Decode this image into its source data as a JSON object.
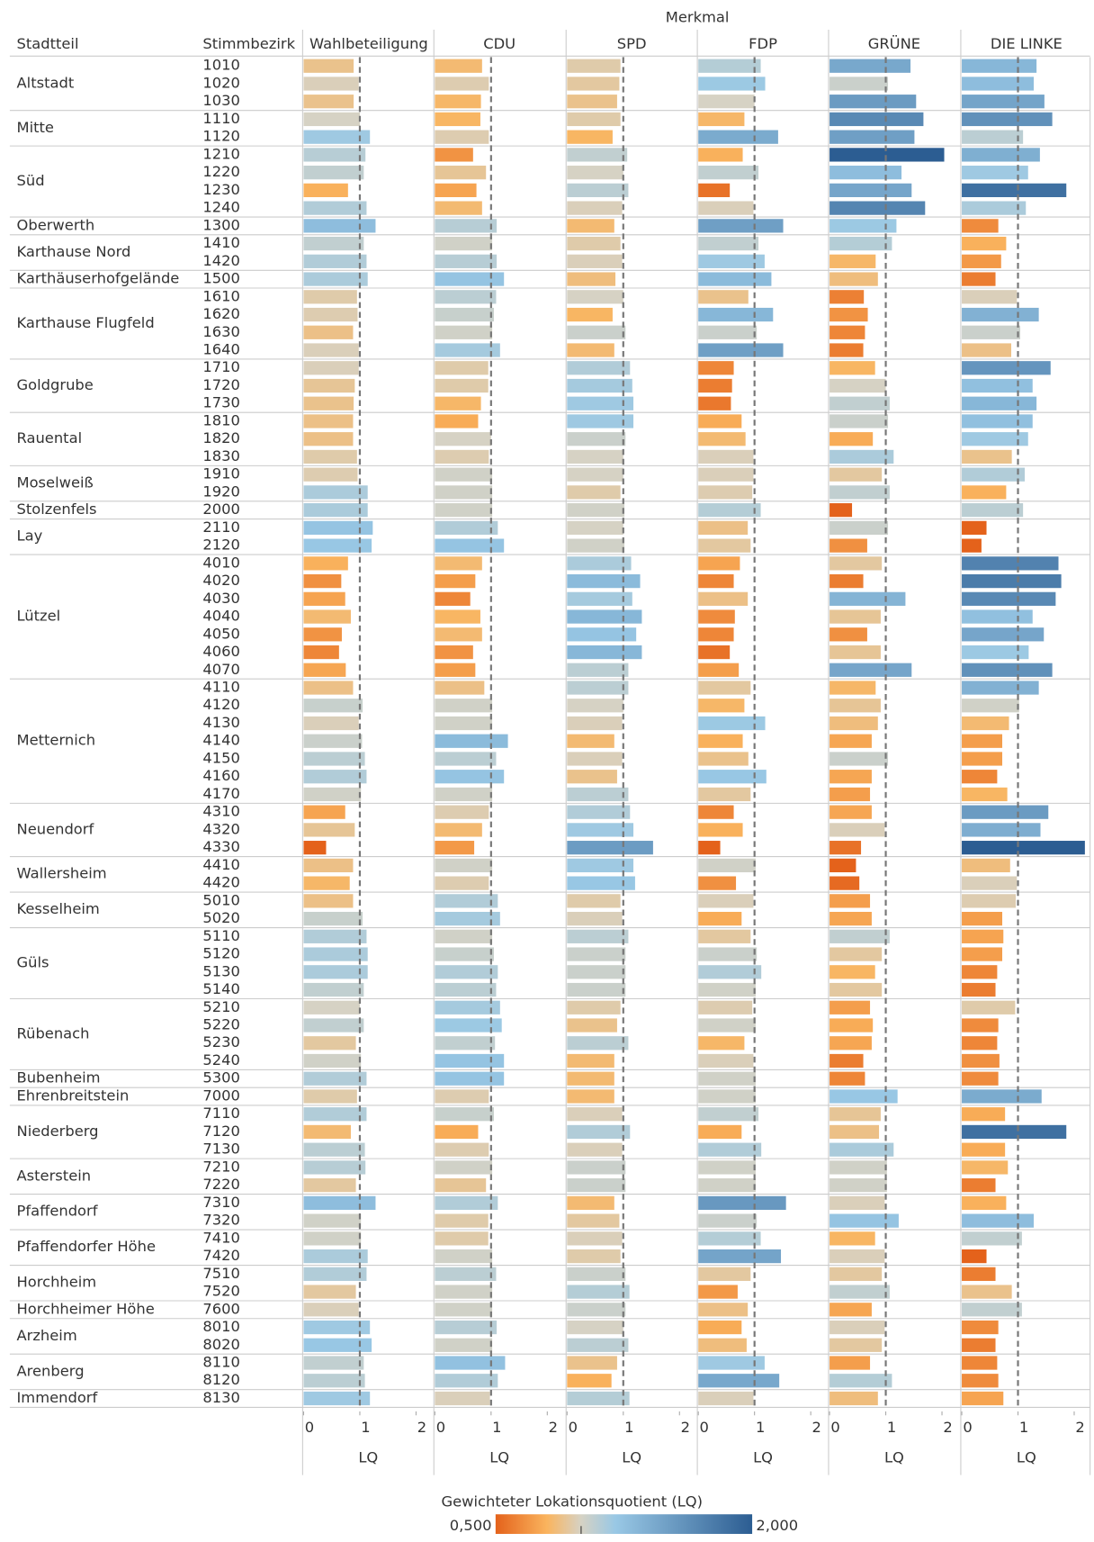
{
  "chart_data": {
    "type": "bar",
    "orientation": "horizontal",
    "facet_title": "Merkmal",
    "column_headers": [
      "Stadtteil",
      "Stimmbezirk"
    ],
    "groups": [
      {
        "name": "Altstadt",
        "bezirke": [
          "1010",
          "1020",
          "1030"
        ]
      },
      {
        "name": "Mitte",
        "bezirke": [
          "1110",
          "1120"
        ]
      },
      {
        "name": "Süd",
        "bezirke": [
          "1210",
          "1220",
          "1230",
          "1240"
        ]
      },
      {
        "name": "Oberwerth",
        "bezirke": [
          "1300"
        ]
      },
      {
        "name": "Karthause Nord",
        "bezirke": [
          "1410",
          "1420"
        ]
      },
      {
        "name": "Karthäuserhofgelände",
        "bezirke": [
          "1500"
        ]
      },
      {
        "name": "Karthause Flugfeld",
        "bezirke": [
          "1610",
          "1620",
          "1630",
          "1640"
        ]
      },
      {
        "name": "Goldgrube",
        "bezirke": [
          "1710",
          "1720",
          "1730"
        ]
      },
      {
        "name": "Rauental",
        "bezirke": [
          "1810",
          "1820",
          "1830"
        ]
      },
      {
        "name": "Moselweiß",
        "bezirke": [
          "1910",
          "1920"
        ]
      },
      {
        "name": "Stolzenfels",
        "bezirke": [
          "2000"
        ]
      },
      {
        "name": "Lay",
        "bezirke": [
          "2110",
          "2120"
        ]
      },
      {
        "name": "Lützel",
        "bezirke": [
          "4010",
          "4020",
          "4030",
          "4040",
          "4050",
          "4060",
          "4070"
        ]
      },
      {
        "name": "Metternich",
        "bezirke": [
          "4110",
          "4120",
          "4130",
          "4140",
          "4150",
          "4160",
          "4170"
        ]
      },
      {
        "name": "Neuendorf",
        "bezirke": [
          "4310",
          "4320",
          "4330"
        ]
      },
      {
        "name": "Wallersheim",
        "bezirke": [
          "4410",
          "4420"
        ]
      },
      {
        "name": "Kesselheim",
        "bezirke": [
          "5010",
          "5020"
        ]
      },
      {
        "name": "Güls",
        "bezirke": [
          "5110",
          "5120",
          "5130",
          "5140"
        ]
      },
      {
        "name": "Rübenach",
        "bezirke": [
          "5210",
          "5220",
          "5230",
          "5240"
        ]
      },
      {
        "name": "Bubenheim",
        "bezirke": [
          "5300"
        ]
      },
      {
        "name": "Ehrenbreitstein",
        "bezirke": [
          "7000"
        ]
      },
      {
        "name": "Niederberg",
        "bezirke": [
          "7110",
          "7120",
          "7130"
        ]
      },
      {
        "name": "Asterstein",
        "bezirke": [
          "7210",
          "7220"
        ]
      },
      {
        "name": "Pfaffendorf",
        "bezirke": [
          "7310",
          "7320"
        ]
      },
      {
        "name": "Pfaffendorfer Höhe",
        "bezirke": [
          "7410",
          "7420"
        ]
      },
      {
        "name": "Horchheim",
        "bezirke": [
          "7510",
          "7520"
        ]
      },
      {
        "name": "Horchheimer Höhe",
        "bezirke": [
          "7600"
        ]
      },
      {
        "name": "Arzheim",
        "bezirke": [
          "8010",
          "8020"
        ]
      },
      {
        "name": "Arenberg",
        "bezirke": [
          "8110",
          "8120"
        ]
      },
      {
        "name": "Immendorf",
        "bezirke": [
          "8130"
        ]
      }
    ],
    "series": [
      {
        "name": "Wahlbeteiligung",
        "values": [
          0.89,
          0.98,
          0.89,
          1.0,
          1.18,
          1.1,
          1.07,
          0.79,
          1.12,
          1.28,
          1.07,
          1.12,
          1.14,
          0.95,
          0.96,
          0.88,
          0.98,
          0.98,
          0.91,
          0.89,
          0.88,
          0.88,
          0.95,
          0.96,
          1.14,
          1.14,
          1.23,
          1.21,
          0.79,
          0.67,
          0.74,
          0.84,
          0.68,
          0.63,
          0.75,
          0.88,
          1.05,
          0.98,
          1.04,
          1.09,
          1.12,
          1.02,
          0.74,
          0.91,
          0.4,
          0.88,
          0.82,
          0.88,
          1.05,
          1.12,
          1.14,
          1.14,
          1.07,
          1.0,
          1.07,
          0.93,
          1.02,
          1.12,
          0.95,
          1.12,
          0.84,
          1.09,
          1.1,
          0.93,
          1.28,
          1.02,
          1.02,
          1.14,
          1.12,
          0.93,
          0.98,
          1.18,
          1.21,
          1.07,
          1.09,
          1.18
        ]
      },
      {
        "name": "CDU",
        "values": [
          0.84,
          0.96,
          0.82,
          0.81,
          0.96,
          0.68,
          0.91,
          0.74,
          0.84,
          1.1,
          1.02,
          1.1,
          1.23,
          1.09,
          1.05,
          1.02,
          1.16,
          0.95,
          0.95,
          0.82,
          0.77,
          1.0,
          0.96,
          1.02,
          1.02,
          1.02,
          1.12,
          1.23,
          0.84,
          0.72,
          0.63,
          0.81,
          0.84,
          0.68,
          0.72,
          0.88,
          1.02,
          1.02,
          1.3,
          1.09,
          1.23,
          1.02,
          0.96,
          0.84,
          0.7,
          1.02,
          0.96,
          1.12,
          1.16,
          1.02,
          1.05,
          1.12,
          1.09,
          1.16,
          1.19,
          1.07,
          1.23,
          1.23,
          0.96,
          1.05,
          0.77,
          0.96,
          1.02,
          0.91,
          1.12,
          0.95,
          0.95,
          1.02,
          1.09,
          1.02,
          1.02,
          1.1,
          1.02,
          1.25,
          1.12,
          0.98
        ]
      },
      {
        "name": "SPD",
        "values": [
          0.95,
          0.93,
          0.89,
          0.95,
          0.81,
          1.07,
          1.0,
          1.09,
          0.98,
          0.84,
          0.95,
          0.98,
          0.86,
          1.0,
          0.81,
          1.04,
          0.84,
          1.12,
          1.16,
          1.18,
          1.18,
          1.04,
          1.0,
          1.0,
          0.95,
          1.02,
          1.0,
          1.02,
          1.14,
          1.3,
          1.16,
          1.33,
          1.23,
          1.33,
          1.09,
          1.09,
          1.0,
          0.98,
          0.84,
          0.98,
          0.89,
          1.09,
          1.12,
          1.18,
          1.53,
          1.18,
          1.21,
          0.95,
          0.98,
          1.09,
          1.04,
          1.04,
          1.04,
          0.95,
          0.89,
          1.09,
          0.84,
          0.84,
          0.84,
          0.98,
          1.12,
          0.98,
          1.04,
          1.04,
          0.84,
          0.93,
          0.98,
          0.95,
          1.04,
          1.11,
          1.04,
          1.0,
          1.09,
          0.89,
          0.79,
          1.11
        ]
      },
      {
        "name": "FDP",
        "values": [
          1.11,
          1.19,
          1.0,
          0.82,
          1.42,
          0.79,
          1.07,
          0.56,
          0.98,
          1.51,
          1.07,
          1.18,
          1.3,
          0.89,
          1.33,
          1.04,
          1.51,
          0.63,
          0.6,
          0.58,
          0.77,
          0.84,
          0.98,
          0.98,
          0.96,
          1.11,
          0.88,
          0.93,
          0.74,
          0.63,
          0.88,
          0.65,
          0.63,
          0.56,
          0.72,
          0.93,
          0.82,
          1.19,
          0.79,
          0.89,
          1.21,
          0.93,
          0.63,
          0.79,
          0.39,
          1.02,
          0.67,
          0.98,
          0.77,
          0.93,
          1.04,
          1.12,
          1.02,
          0.96,
          1.02,
          0.82,
          0.98,
          1.02,
          1.02,
          1.07,
          0.77,
          1.12,
          1.02,
          1.02,
          1.56,
          1.04,
          1.11,
          1.47,
          0.93,
          0.7,
          0.88,
          0.77,
          0.86,
          1.18,
          1.44,
          0.98
        ]
      },
      {
        "name": "GRÜNE",
        "values": [
          1.44,
          1.04,
          1.54,
          1.67,
          1.51,
          2.04,
          1.28,
          1.46,
          1.7,
          1.19,
          1.11,
          0.82,
          0.86,
          0.61,
          0.68,
          0.63,
          0.6,
          0.81,
          1.0,
          1.07,
          1.04,
          0.77,
          1.14,
          0.93,
          1.07,
          0.4,
          1.04,
          0.67,
          0.93,
          0.6,
          1.35,
          0.91,
          0.67,
          0.91,
          1.46,
          0.82,
          0.91,
          0.86,
          0.75,
          1.04,
          0.75,
          0.72,
          0.75,
          0.98,
          0.56,
          0.47,
          0.53,
          0.72,
          0.75,
          1.07,
          0.93,
          0.81,
          0.93,
          0.72,
          0.77,
          0.75,
          0.6,
          0.63,
          1.21,
          0.91,
          0.88,
          1.14,
          1.02,
          1.02,
          0.98,
          1.23,
          0.81,
          0.98,
          0.93,
          1.07,
          0.75,
          0.98,
          0.93,
          0.72,
          1.11,
          0.86
        ]
      },
      {
        "name": "DIE LINKE",
        "values": [
          1.33,
          1.28,
          1.47,
          1.61,
          1.09,
          1.39,
          1.18,
          1.86,
          1.14,
          0.65,
          0.79,
          0.7,
          0.6,
          0.98,
          1.37,
          1.04,
          0.88,
          1.58,
          1.26,
          1.33,
          1.26,
          1.18,
          0.89,
          1.12,
          0.79,
          1.09,
          0.44,
          0.35,
          1.72,
          1.77,
          1.67,
          1.26,
          1.46,
          1.19,
          1.61,
          1.37,
          1.02,
          0.84,
          0.72,
          0.72,
          0.63,
          0.81,
          1.54,
          1.4,
          2.19,
          0.86,
          0.98,
          0.96,
          0.72,
          0.74,
          0.72,
          0.63,
          0.6,
          0.95,
          0.65,
          0.63,
          0.67,
          0.65,
          1.42,
          0.77,
          1.86,
          0.77,
          0.82,
          0.6,
          0.79,
          1.28,
          1.07,
          0.44,
          0.6,
          0.89,
          1.07,
          0.65,
          0.6,
          0.63,
          0.65,
          0.74
        ]
      }
    ],
    "xlim": [
      0,
      2.3
    ],
    "xticks": [
      0,
      1,
      2
    ],
    "xlabel": "LQ",
    "reference_line": 1,
    "color_scale": {
      "title": "Gewichteter Lokationsquotient (LQ)",
      "domain": [
        0.5,
        0.8,
        1,
        1.2,
        2
      ],
      "colors": [
        "#e4621b",
        "#fab45e",
        "#d6d2c4",
        "#99c8e5",
        "#2c5d92"
      ],
      "ticks": [
        {
          "value": 0.5,
          "label": "0,500"
        },
        {
          "value": 2,
          "label": "2,000"
        }
      ]
    }
  }
}
